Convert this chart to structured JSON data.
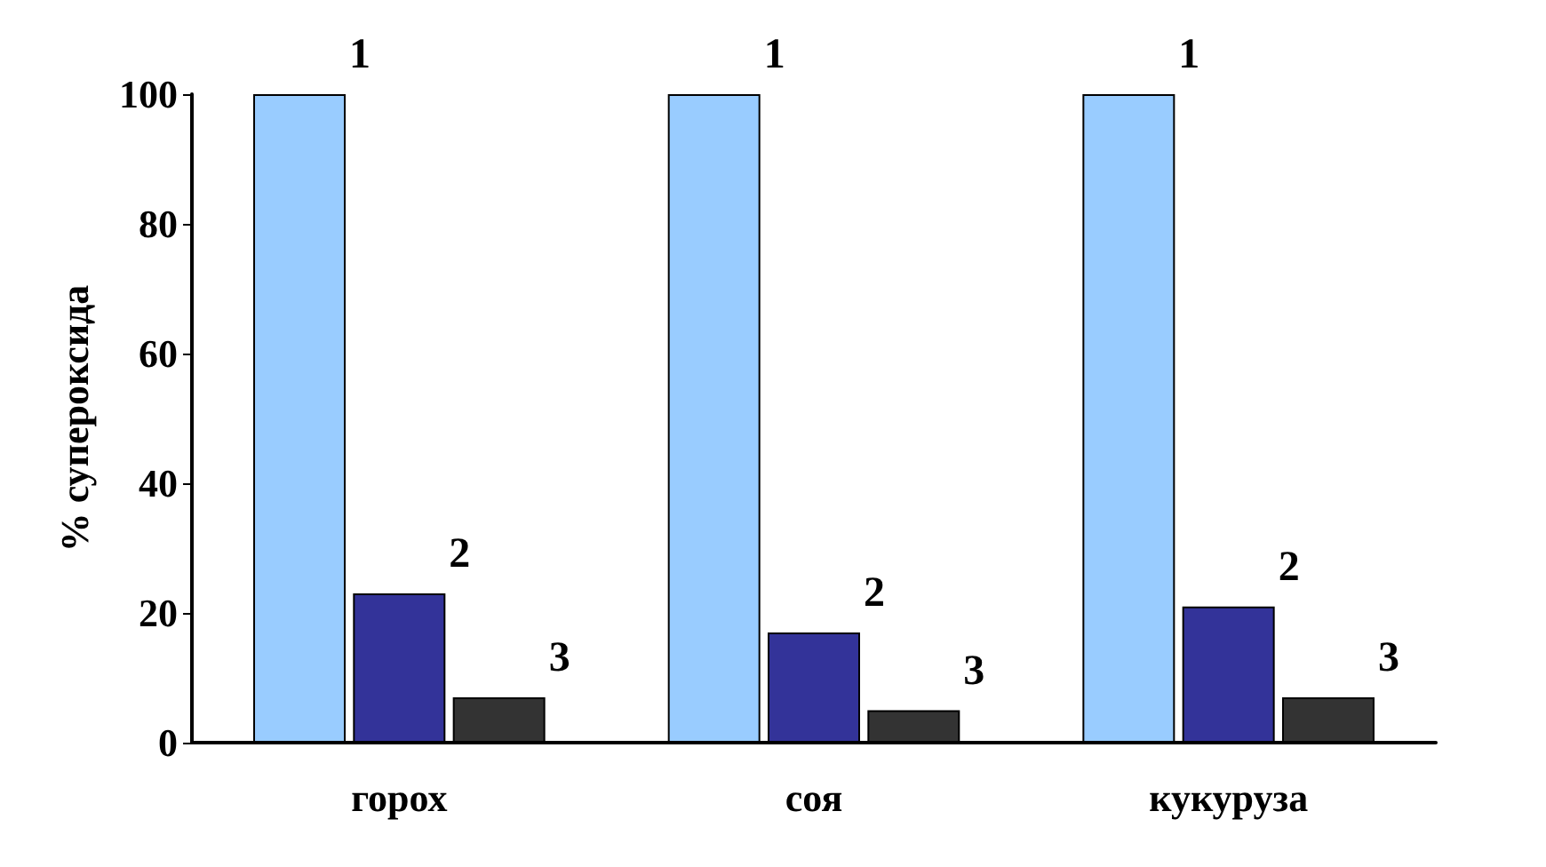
{
  "chart_data": {
    "type": "bar",
    "ylabel": "% супероксида",
    "categories": [
      "горох",
      "соя",
      "кукуруза"
    ],
    "series": [
      {
        "name": "1",
        "color": "#99ccff",
        "values": [
          100,
          100,
          100
        ]
      },
      {
        "name": "2",
        "color": "#333399",
        "values": [
          23,
          17,
          21
        ]
      },
      {
        "name": "3",
        "color": "#333333",
        "values": [
          7,
          5,
          7
        ]
      }
    ],
    "ylim": [
      0,
      100
    ],
    "yticks": [
      0,
      20,
      40,
      60,
      80,
      100
    ],
    "grid": false,
    "legend": false
  }
}
